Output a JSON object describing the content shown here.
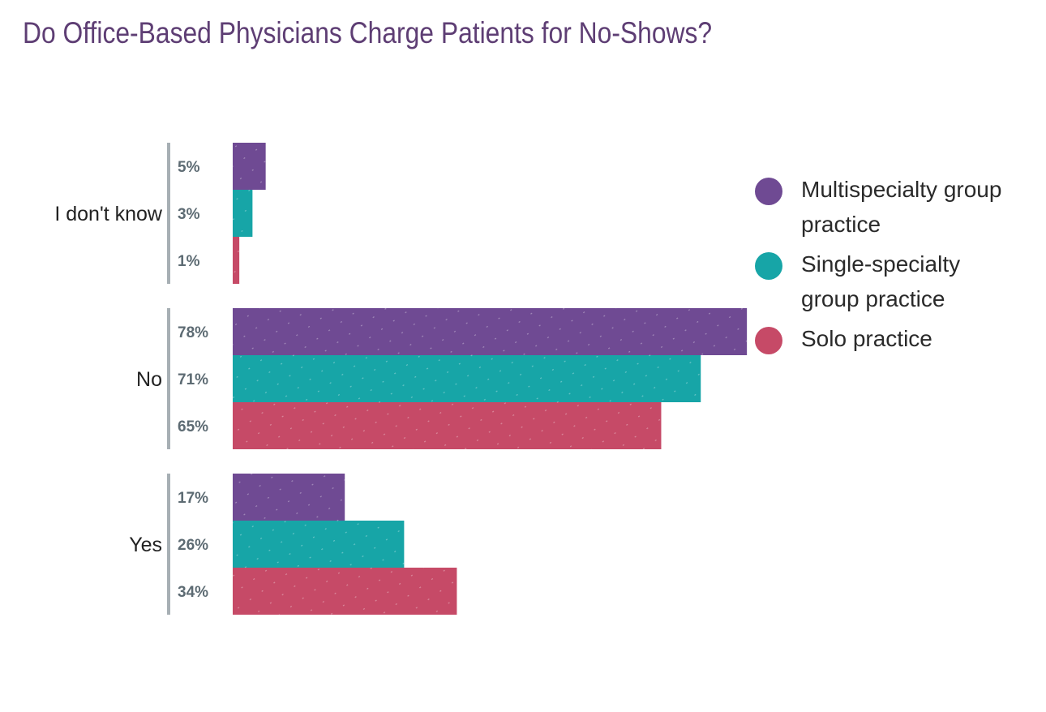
{
  "chart_data": {
    "type": "bar",
    "orientation": "horizontal",
    "title": "Do Office-Based Physicians Charge Patients for No-Shows?",
    "categories": [
      "I don't know",
      "No",
      "Yes"
    ],
    "series": [
      {
        "name": "Multispecialty group practice",
        "values": [
          5,
          78,
          17
        ],
        "labels": [
          "5%",
          "78%",
          "17%"
        ]
      },
      {
        "name": "Single-specialty group practice",
        "values": [
          3,
          71,
          26
        ],
        "labels": [
          "3%",
          "71%",
          "26%"
        ]
      },
      {
        "name": "Solo practice",
        "values": [
          1,
          65,
          34
        ],
        "labels": [
          "1%",
          "65%",
          "34%"
        ]
      }
    ],
    "unit": "%",
    "xlim": [
      0,
      100
    ],
    "grid": false,
    "legend_position": "right",
    "legend_lines": [
      [
        "Multispecialty group",
        "practice"
      ],
      [
        "Single-specialty",
        "group practice"
      ],
      [
        "Solo practice"
      ]
    ]
  },
  "colors": {
    "title": "#5e3e74",
    "series": [
      "#6f4a93",
      "#17a5a7",
      "#c64a67"
    ],
    "axis": "#a7afb4"
  }
}
